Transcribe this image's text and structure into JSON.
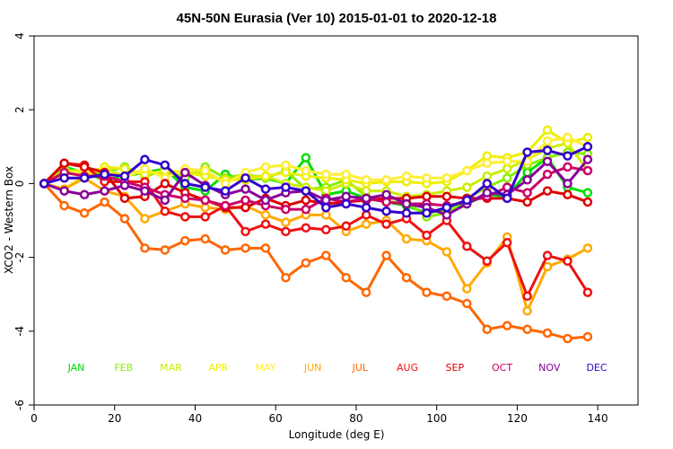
{
  "chart_data": {
    "type": "line",
    "title": "45N-50N Eurasia (Ver 10)   2015-01-01 to 2020-12-18",
    "xlabel": "Longitude (deg E)",
    "ylabel": "XCO2 - Western Box",
    "xlim": [
      0,
      150
    ],
    "ylim": [
      -6,
      4
    ],
    "xticks": [
      0,
      20,
      40,
      60,
      80,
      100,
      120,
      140
    ],
    "yticks": [
      -6,
      -4,
      -2,
      0,
      2,
      4
    ],
    "grid": false,
    "legend_position": "bottom-inside",
    "x": [
      2.5,
      7.5,
      12.5,
      17.5,
      22.5,
      27.5,
      32.5,
      37.5,
      42.5,
      47.5,
      52.5,
      57.5,
      62.5,
      67.5,
      72.5,
      77.5,
      82.5,
      87.5,
      92.5,
      97.5,
      102.5,
      107.5,
      112.5,
      117.5,
      122.5,
      127.5,
      132.5,
      137.5
    ],
    "series": [
      {
        "name": "JAN",
        "color": "#00dd00",
        "values": [
          0.0,
          0.45,
          0.3,
          0.1,
          0.2,
          0.3,
          0.4,
          -0.1,
          -0.2,
          0.25,
          0.1,
          0.15,
          0.0,
          0.7,
          -0.3,
          -0.2,
          -0.4,
          -0.5,
          -0.6,
          -0.8,
          -0.7,
          -0.55,
          -0.3,
          -0.35,
          0.3,
          0.7,
          -0.1,
          -0.25
        ]
      },
      {
        "name": "FEB",
        "color": "#88ee00",
        "values": [
          0.0,
          0.4,
          0.25,
          0.3,
          0.45,
          0.2,
          0.35,
          0.15,
          0.45,
          0.15,
          0.25,
          0.15,
          0.35,
          -0.15,
          -0.1,
          0.1,
          -0.35,
          -0.5,
          -0.5,
          -0.9,
          -0.8,
          -0.4,
          -0.1,
          0.15,
          0.5,
          0.7,
          0.85,
          0.8
        ]
      },
      {
        "name": "MAR",
        "color": "#ccee00",
        "values": [
          0.0,
          0.35,
          0.35,
          0.4,
          0.2,
          0.35,
          0.2,
          0.3,
          0.3,
          0.05,
          0.2,
          0.2,
          0.0,
          -0.1,
          -0.2,
          0.0,
          -0.2,
          -0.2,
          -0.35,
          -0.3,
          -0.2,
          -0.1,
          0.2,
          0.4,
          0.65,
          0.95,
          1.1,
          0.35
        ]
      },
      {
        "name": "APR",
        "color": "#eeee00",
        "values": [
          0.0,
          -0.15,
          0.2,
          0.45,
          0.4,
          0.25,
          0.35,
          0.3,
          0.2,
          0.1,
          0.1,
          0.2,
          0.3,
          0.2,
          0.15,
          0.1,
          0.0,
          0.05,
          0.05,
          0.0,
          0.05,
          0.35,
          0.75,
          0.7,
          0.85,
          1.45,
          1.1,
          1.25
        ]
      },
      {
        "name": "MAY",
        "color": "#ffee33",
        "values": [
          0.0,
          0.25,
          0.35,
          0.35,
          0.15,
          0.4,
          0.15,
          0.4,
          0.35,
          0.0,
          0.3,
          0.45,
          0.5,
          0.35,
          0.25,
          0.25,
          0.1,
          0.1,
          0.2,
          0.15,
          0.15,
          0.35,
          0.55,
          0.6,
          0.6,
          1.15,
          1.25,
          1.0
        ]
      },
      {
        "name": "JUN",
        "color": "#ffaa00",
        "values": [
          0.0,
          -0.15,
          0.15,
          -0.2,
          -0.35,
          -0.95,
          -0.75,
          -0.55,
          -0.65,
          -0.7,
          -0.6,
          -0.85,
          -1.05,
          -0.85,
          -0.85,
          -1.3,
          -1.1,
          -1.0,
          -1.5,
          -1.55,
          -1.85,
          -2.85,
          -2.15,
          -1.45,
          -3.45,
          -2.25,
          -2.05,
          -1.75
        ]
      },
      {
        "name": "JUL",
        "color": "#ff6600",
        "values": [
          0.0,
          -0.6,
          -0.8,
          -0.5,
          -0.95,
          -1.75,
          -1.8,
          -1.55,
          -1.5,
          -1.8,
          -1.75,
          -1.75,
          -2.55,
          -2.15,
          -1.95,
          -2.55,
          -2.95,
          -1.95,
          -2.55,
          -2.95,
          -3.05,
          -3.25,
          -3.95,
          -3.85,
          -3.95,
          -4.05,
          -4.2,
          -4.15
        ]
      },
      {
        "name": "AUG",
        "color": "#ee1111",
        "values": [
          0.0,
          0.55,
          0.5,
          0.05,
          0.05,
          0.05,
          -0.75,
          -0.9,
          -0.9,
          -0.6,
          -1.3,
          -1.1,
          -1.3,
          -1.2,
          -1.25,
          -1.15,
          -0.85,
          -1.1,
          -0.95,
          -1.4,
          -1.0,
          -1.7,
          -2.1,
          -1.6,
          -3.05,
          -1.95,
          -2.1,
          -2.95
        ]
      },
      {
        "name": "SEP",
        "color": "#dd0000",
        "values": [
          0.0,
          0.55,
          0.45,
          0.3,
          -0.4,
          -0.35,
          0.0,
          -0.25,
          -0.45,
          -0.65,
          -0.65,
          -0.4,
          -0.6,
          -0.45,
          -0.55,
          -0.5,
          -0.45,
          -0.4,
          -0.4,
          -0.35,
          -0.35,
          -0.4,
          -0.4,
          -0.4,
          -0.5,
          -0.2,
          -0.3,
          -0.5
        ]
      },
      {
        "name": "OCT",
        "color": "#cc0066",
        "values": [
          0.0,
          0.3,
          0.2,
          0.2,
          0.05,
          -0.1,
          -0.3,
          -0.4,
          -0.45,
          -0.6,
          -0.45,
          -0.6,
          -0.7,
          -0.7,
          -0.4,
          -0.5,
          -0.4,
          -0.5,
          -0.55,
          -0.55,
          -0.6,
          -0.5,
          -0.35,
          -0.1,
          -0.25,
          0.25,
          0.45,
          0.35
        ]
      },
      {
        "name": "NOV",
        "color": "#880099",
        "values": [
          0.0,
          -0.2,
          -0.3,
          -0.2,
          -0.05,
          -0.2,
          -0.45,
          0.3,
          -0.05,
          -0.3,
          -0.15,
          -0.45,
          -0.25,
          -0.2,
          -0.45,
          -0.35,
          -0.4,
          -0.3,
          -0.55,
          -0.65,
          -0.85,
          -0.55,
          -0.25,
          -0.3,
          0.1,
          0.6,
          0.0,
          0.65
        ]
      },
      {
        "name": "DEC",
        "color": "#3300cc",
        "values": [
          0.0,
          0.15,
          0.15,
          0.25,
          0.2,
          0.65,
          0.5,
          0.0,
          -0.1,
          -0.2,
          0.15,
          -0.15,
          -0.1,
          -0.2,
          -0.65,
          -0.55,
          -0.65,
          -0.75,
          -0.8,
          -0.8,
          -0.65,
          -0.45,
          0.0,
          -0.4,
          0.85,
          0.9,
          0.75,
          1.0
        ]
      }
    ]
  }
}
